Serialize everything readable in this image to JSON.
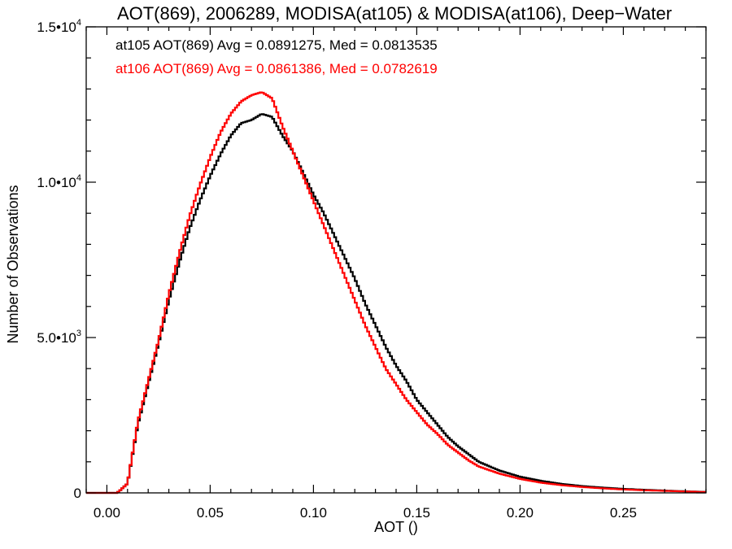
{
  "chart_data": {
    "type": "line",
    "style": "step-histogram",
    "title": "AOT(869), 2006289, MODISA(at105) & MODISA(at106), Deep−Water",
    "xlabel": "AOT ()",
    "ylabel": "Number of Observations",
    "xlim": [
      -0.01,
      0.29
    ],
    "ylim": [
      0,
      15000
    ],
    "x_ticks": [
      {
        "value": 0.0,
        "label": "0.00"
      },
      {
        "value": 0.05,
        "label": "0.05"
      },
      {
        "value": 0.1,
        "label": "0.10"
      },
      {
        "value": 0.15,
        "label": "0.15"
      },
      {
        "value": 0.2,
        "label": "0.20"
      },
      {
        "value": 0.25,
        "label": "0.25"
      }
    ],
    "y_ticks": [
      {
        "value": 0,
        "mantissa": "0",
        "exponent": ""
      },
      {
        "value": 5000,
        "mantissa": "5.0•10",
        "exponent": "3"
      },
      {
        "value": 10000,
        "mantissa": "1.0•10",
        "exponent": "4"
      },
      {
        "value": 15000,
        "mantissa": "1.5•10",
        "exponent": "4"
      }
    ],
    "legend_position": "top-left",
    "grid": false,
    "series": [
      {
        "name": "at105 AOT(869) Avg = 0.0891275, Med = 0.0813535",
        "color": "#000000",
        "points": [
          [
            -0.01,
            0
          ],
          [
            0.005,
            0
          ],
          [
            0.01,
            300
          ],
          [
            0.015,
            2200
          ],
          [
            0.02,
            3500
          ],
          [
            0.025,
            4800
          ],
          [
            0.03,
            6200
          ],
          [
            0.035,
            7400
          ],
          [
            0.04,
            8500
          ],
          [
            0.045,
            9400
          ],
          [
            0.05,
            10200
          ],
          [
            0.055,
            10900
          ],
          [
            0.06,
            11500
          ],
          [
            0.065,
            11900
          ],
          [
            0.07,
            12000
          ],
          [
            0.075,
            12200
          ],
          [
            0.08,
            12100
          ],
          [
            0.085,
            11500
          ],
          [
            0.09,
            11000
          ],
          [
            0.095,
            10300
          ],
          [
            0.1,
            9600
          ],
          [
            0.105,
            9000
          ],
          [
            0.11,
            8300
          ],
          [
            0.115,
            7600
          ],
          [
            0.12,
            6900
          ],
          [
            0.125,
            6100
          ],
          [
            0.13,
            5400
          ],
          [
            0.135,
            4700
          ],
          [
            0.14,
            4100
          ],
          [
            0.145,
            3600
          ],
          [
            0.15,
            3000
          ],
          [
            0.155,
            2600
          ],
          [
            0.16,
            2200
          ],
          [
            0.165,
            1800
          ],
          [
            0.17,
            1500
          ],
          [
            0.175,
            1250
          ],
          [
            0.18,
            1000
          ],
          [
            0.19,
            720
          ],
          [
            0.2,
            520
          ],
          [
            0.21,
            390
          ],
          [
            0.22,
            290
          ],
          [
            0.23,
            220
          ],
          [
            0.24,
            170
          ],
          [
            0.25,
            130
          ],
          [
            0.26,
            100
          ],
          [
            0.27,
            75
          ],
          [
            0.28,
            50
          ],
          [
            0.29,
            30
          ]
        ]
      },
      {
        "name": "at106 AOT(869) Avg = 0.0861386, Med = 0.0782619",
        "color": "#ff0000",
        "points": [
          [
            -0.01,
            0
          ],
          [
            0.005,
            0
          ],
          [
            0.01,
            300
          ],
          [
            0.015,
            2300
          ],
          [
            0.02,
            3600
          ],
          [
            0.025,
            4900
          ],
          [
            0.03,
            6400
          ],
          [
            0.035,
            7700
          ],
          [
            0.04,
            8900
          ],
          [
            0.045,
            9900
          ],
          [
            0.05,
            10800
          ],
          [
            0.055,
            11600
          ],
          [
            0.06,
            12200
          ],
          [
            0.065,
            12600
          ],
          [
            0.07,
            12800
          ],
          [
            0.075,
            12900
          ],
          [
            0.08,
            12700
          ],
          [
            0.085,
            11800
          ],
          [
            0.09,
            11000
          ],
          [
            0.095,
            10200
          ],
          [
            0.1,
            9400
          ],
          [
            0.105,
            8600
          ],
          [
            0.11,
            7800
          ],
          [
            0.115,
            7000
          ],
          [
            0.12,
            6200
          ],
          [
            0.125,
            5400
          ],
          [
            0.13,
            4700
          ],
          [
            0.135,
            4000
          ],
          [
            0.14,
            3500
          ],
          [
            0.145,
            3000
          ],
          [
            0.15,
            2600
          ],
          [
            0.155,
            2200
          ],
          [
            0.16,
            1900
          ],
          [
            0.165,
            1550
          ],
          [
            0.17,
            1300
          ],
          [
            0.175,
            1050
          ],
          [
            0.18,
            850
          ],
          [
            0.19,
            620
          ],
          [
            0.2,
            450
          ],
          [
            0.21,
            330
          ],
          [
            0.22,
            250
          ],
          [
            0.23,
            190
          ],
          [
            0.24,
            145
          ],
          [
            0.25,
            110
          ],
          [
            0.26,
            85
          ],
          [
            0.27,
            65
          ],
          [
            0.28,
            45
          ],
          [
            0.29,
            25
          ]
        ]
      }
    ]
  }
}
